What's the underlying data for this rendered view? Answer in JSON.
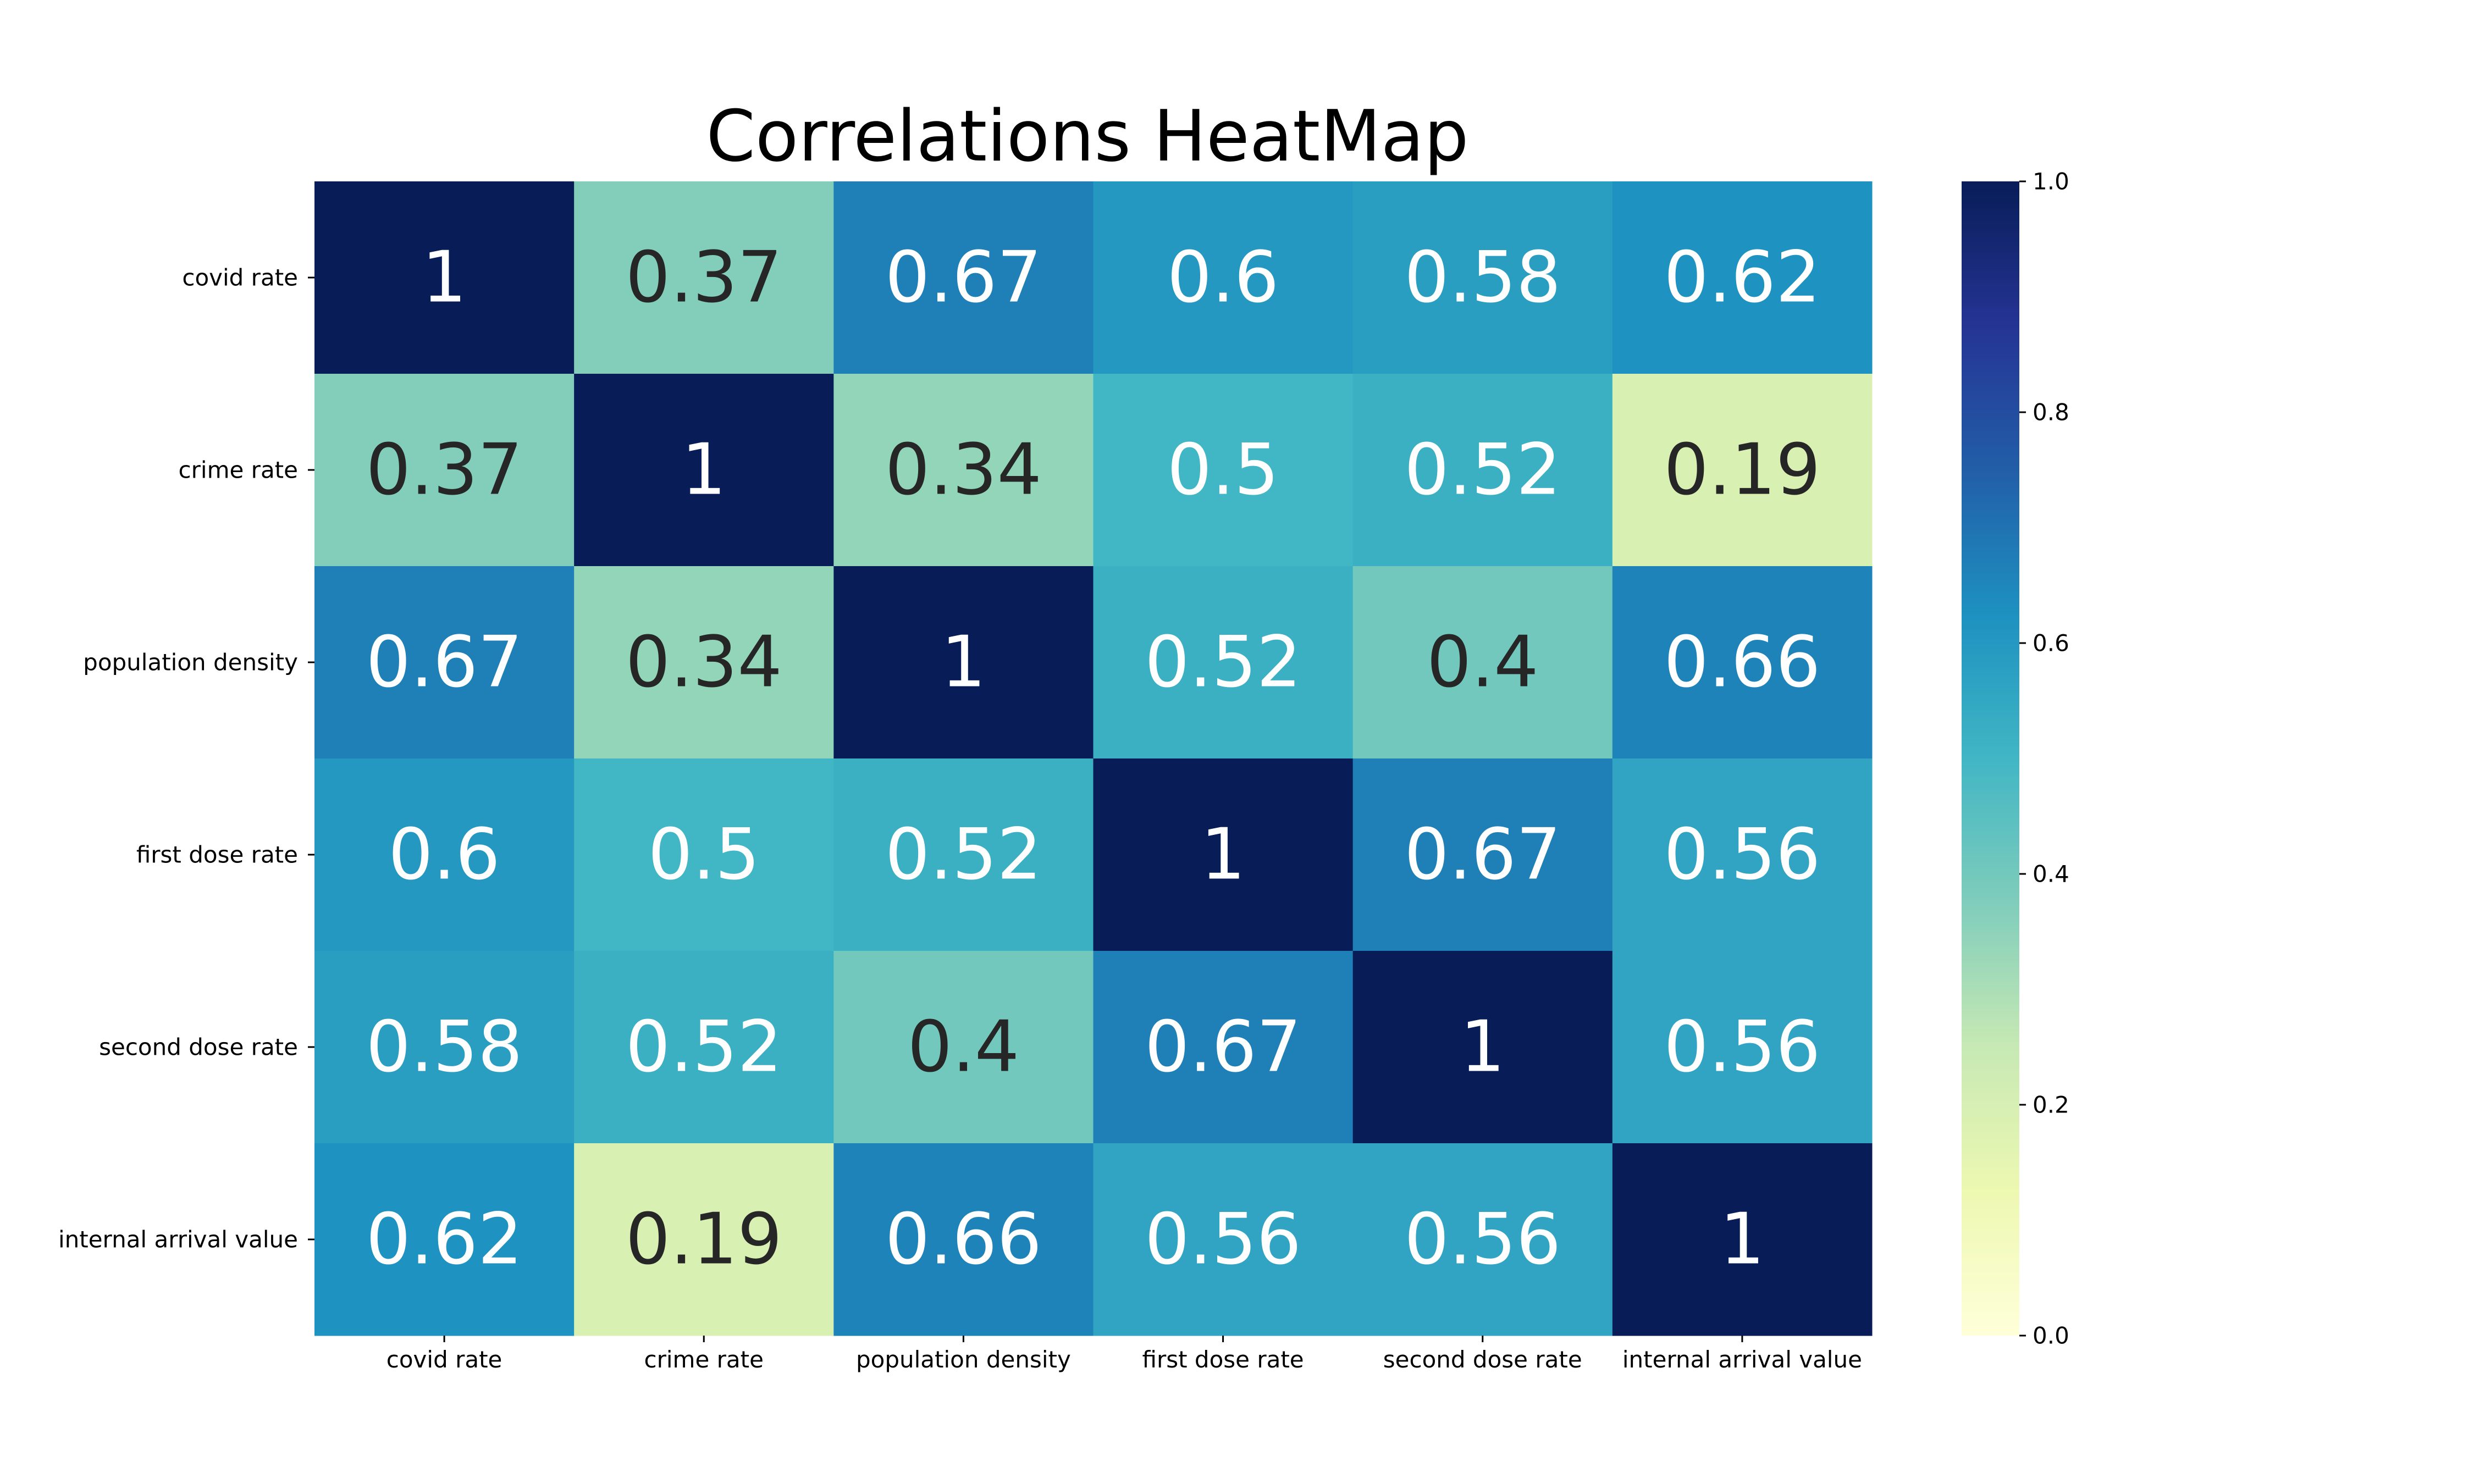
{
  "chart_data": {
    "type": "heatmap",
    "title": "Correlations HeatMap",
    "row_labels": [
      "covid rate",
      "crime rate",
      "population density",
      "first dose rate",
      "second dose rate",
      "internal arrival value"
    ],
    "col_labels": [
      "covid rate",
      "crime rate",
      "population density",
      "first dose rate",
      "second dose rate",
      "internal arrival value"
    ],
    "values": [
      [
        1,
        0.37,
        0.67,
        0.6,
        0.58,
        0.62
      ],
      [
        0.37,
        1,
        0.34,
        0.5,
        0.52,
        0.19
      ],
      [
        0.67,
        0.34,
        1,
        0.52,
        0.4,
        0.66
      ],
      [
        0.6,
        0.5,
        0.52,
        1,
        0.67,
        0.56
      ],
      [
        0.58,
        0.52,
        0.4,
        0.67,
        1,
        0.56
      ],
      [
        0.62,
        0.19,
        0.66,
        0.56,
        0.56,
        1
      ]
    ],
    "colorbar": {
      "range": [
        0.0,
        1.0
      ],
      "ticks": [
        "0.0",
        "0.2",
        "0.4",
        "0.6",
        "0.8",
        "1.0"
      ],
      "colormap": "YlGnBu",
      "colormap_stops": [
        "#ffffd9",
        "#edf8b1",
        "#c7e9b4",
        "#7fcdbb",
        "#41b6c4",
        "#1d91c0",
        "#225ea8",
        "#253494",
        "#081d58"
      ]
    },
    "annotation_colors": {
      "dark": "#262626",
      "light": "#ffffff"
    }
  }
}
